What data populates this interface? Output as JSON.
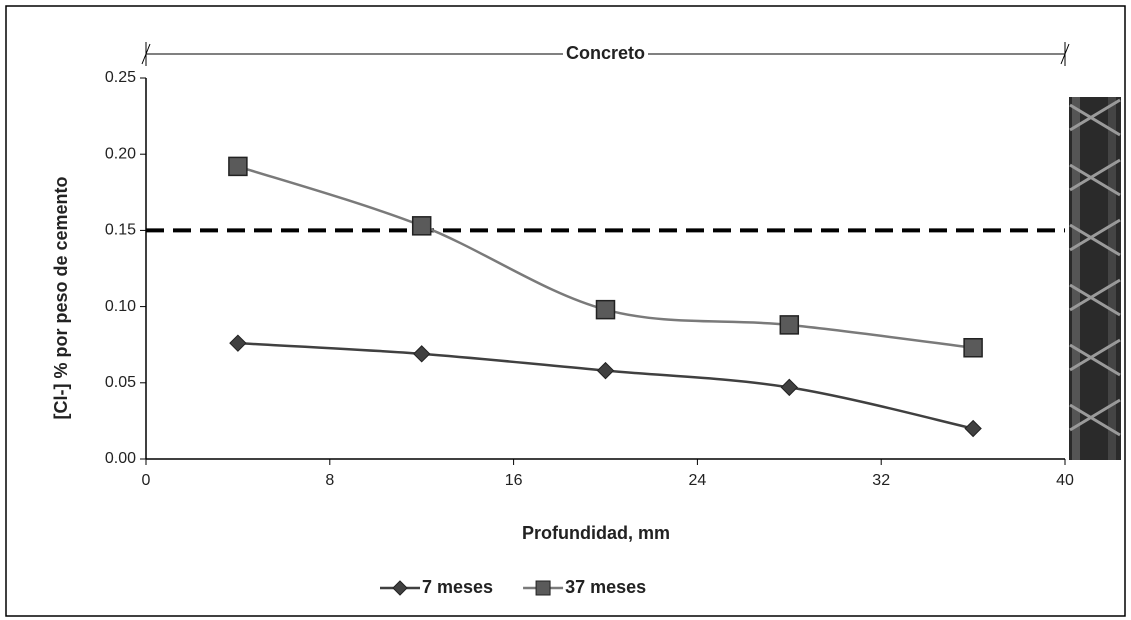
{
  "chart_data": {
    "type": "line",
    "annotation": "Concreto",
    "xlabel": "Profundidad, mm",
    "ylabel": "[Cl-] %  por peso de cemento",
    "x": [
      4,
      12,
      20,
      28,
      36
    ],
    "series": [
      {
        "name": "7 meses",
        "color": "#404040",
        "marker": "diamond",
        "values": [
          0.076,
          0.069,
          0.058,
          0.047,
          0.02
        ]
      },
      {
        "name": "37 meses",
        "color": "#7a7a7a",
        "marker": "square",
        "values": [
          0.192,
          0.153,
          0.098,
          0.088,
          0.073
        ]
      }
    ],
    "reference_line": 0.15,
    "xlim": [
      0,
      40
    ],
    "xticks": [
      0,
      8,
      16,
      24,
      32,
      40
    ],
    "ylim": [
      0,
      0.25
    ],
    "yticks": [
      {
        "value": 0,
        "label": "0.00"
      },
      0.05,
      {
        "value": 0.1,
        "label": "0.10"
      },
      0.15,
      {
        "value": 0.2,
        "label": "0.20"
      },
      0.25
    ],
    "legend": "bottom"
  }
}
